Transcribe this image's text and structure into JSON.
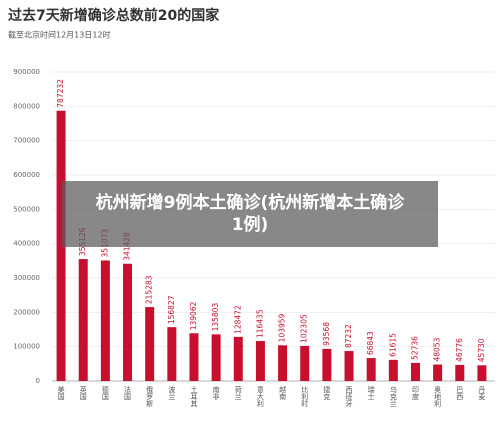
{
  "chart_data": {
    "type": "bar",
    "title": "过去7天新增确诊总数前20的国家",
    "subtitle": "截至北京时间12月13日12时",
    "annotation": "杭州新增9例本土确诊(杭州新增本土确诊1例)",
    "categories": [
      "美国",
      "英国",
      "德国",
      "法国",
      "俄罗斯",
      "波兰",
      "土耳其",
      "南非",
      "荷兰",
      "意大利",
      "越南",
      "比利时",
      "捷克",
      "西班牙",
      "瑞士",
      "乌克兰",
      "印度",
      "奥地利",
      "巴西",
      "丹麦"
    ],
    "values": [
      787232,
      355126,
      351073,
      341428,
      215283,
      156827,
      139062,
      135803,
      128472,
      116435,
      103959,
      102305,
      93568,
      87232,
      66843,
      61615,
      52736,
      48053,
      46776,
      45730
    ],
    "color": "#c8102e",
    "ylim": [
      0,
      900000
    ],
    "yticks": [
      0,
      100000,
      200000,
      300000,
      400000,
      500000,
      600000,
      700000,
      800000,
      900000
    ],
    "grid": true
  }
}
